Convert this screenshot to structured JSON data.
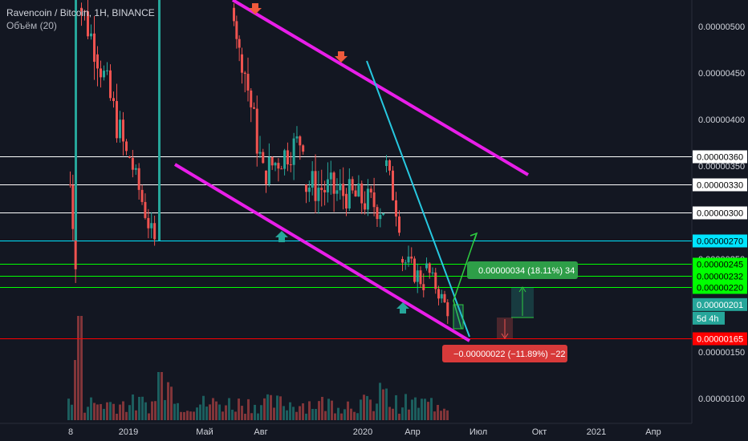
{
  "legend": {
    "symbol": "Ravencoin / Bitcoin, 1H, BINANCE",
    "volume": "Объём (20)"
  },
  "chart_data": {
    "type": "candlestick",
    "y_ticks": [
      "0.00000500",
      "0.00000450",
      "0.00000400",
      "0.00000350",
      "0.00000300",
      "0.00000250",
      "0.00000200",
      "0.00000150",
      "0.00000100"
    ],
    "x_ticks": [
      "8",
      "2019",
      "Май",
      "Авг",
      "2020",
      "Апр",
      "Июл",
      "Окт",
      "2021",
      "Апр"
    ],
    "horizontal_levels": [
      {
        "value": "0.00000360",
        "color": "#ffffff"
      },
      {
        "value": "0.00000330",
        "color": "#ffffff"
      },
      {
        "value": "0.00000300",
        "color": "#ffffff"
      },
      {
        "value": "0.00000270",
        "color": "#00e5ff"
      },
      {
        "value": "0.00000245",
        "color": "#00ff00"
      },
      {
        "value": "0.00000232",
        "color": "#00ff00"
      },
      {
        "value": "0.00000220",
        "color": "#00ff00"
      },
      {
        "value": "0.00000165",
        "color": "#ff0000"
      }
    ],
    "current_price": "0.00000201",
    "countdown": "5d 4h",
    "long_box_label": "0.00000034 (18.11%) 34",
    "short_box_label": "−0.00000022 (−11.89%) −22",
    "channel_color": "#e91ee9",
    "trendline_color": "#27c8e0",
    "up_color": "#26a69a",
    "down_color": "#ef5350"
  }
}
